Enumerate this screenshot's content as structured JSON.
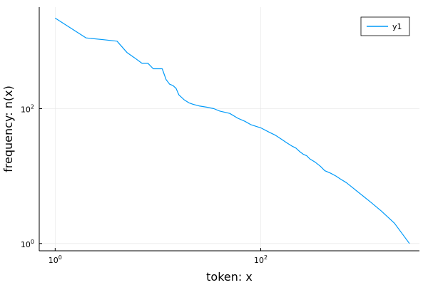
{
  "chart_data": {
    "type": "line",
    "xlabel": "token: x",
    "ylabel": "frequency: n(x)",
    "xscale": "log10",
    "yscale": "log10",
    "xlim": [
      0.7,
      3500
    ],
    "ylim": [
      0.78,
      3200
    ],
    "grid": true,
    "legend_position": "top-right",
    "x_ticks": [
      {
        "value": 1,
        "base": "10",
        "exp": "0"
      },
      {
        "value": 100,
        "base": "10",
        "exp": "2"
      }
    ],
    "y_ticks": [
      {
        "value": 1,
        "base": "10",
        "exp": "0"
      },
      {
        "value": 100,
        "base": "10",
        "exp": "2"
      }
    ],
    "series": [
      {
        "name": "y1",
        "color": "#009AF9",
        "points": [
          [
            1,
            2200
          ],
          [
            2,
            1120
          ],
          [
            3,
            1050
          ],
          [
            4,
            1000
          ],
          [
            5,
            680
          ],
          [
            6,
            560
          ],
          [
            7,
            470
          ],
          [
            8,
            470
          ],
          [
            9,
            390
          ],
          [
            10,
            390
          ],
          [
            11,
            390
          ],
          [
            12,
            270
          ],
          [
            13,
            230
          ],
          [
            14,
            220
          ],
          [
            15,
            200
          ],
          [
            16,
            160
          ],
          [
            18,
            135
          ],
          [
            20,
            122
          ],
          [
            22,
            116
          ],
          [
            25,
            110
          ],
          [
            30,
            105
          ],
          [
            35,
            100
          ],
          [
            40,
            92
          ],
          [
            50,
            85
          ],
          [
            60,
            72
          ],
          [
            70,
            65
          ],
          [
            80,
            58
          ],
          [
            100,
            52
          ],
          [
            120,
            45
          ],
          [
            140,
            40
          ],
          [
            160,
            35
          ],
          [
            180,
            31
          ],
          [
            200,
            28
          ],
          [
            220,
            26
          ],
          [
            240,
            23
          ],
          [
            260,
            21
          ],
          [
            280,
            20
          ],
          [
            300,
            18
          ],
          [
            340,
            16
          ],
          [
            380,
            14
          ],
          [
            420,
            12
          ],
          [
            480,
            11
          ],
          [
            540,
            10
          ],
          [
            600,
            9
          ],
          [
            680,
            8
          ],
          [
            760,
            7
          ],
          [
            860,
            6
          ],
          [
            1000,
            5
          ],
          [
            1200,
            4
          ],
          [
            1500,
            3
          ],
          [
            2000,
            2
          ],
          [
            2800,
            1
          ],
          [
            2800,
            1
          ]
        ]
      }
    ]
  }
}
